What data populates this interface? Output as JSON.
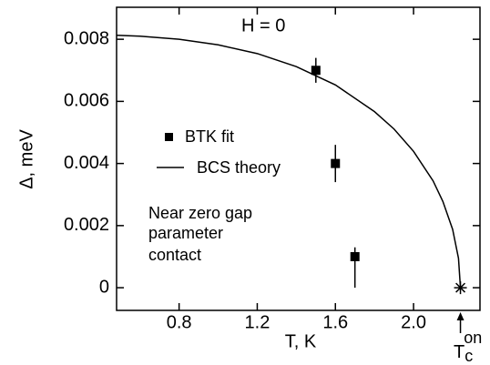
{
  "chart_data": {
    "type": "scatter",
    "xlabel": "T,  K",
    "ylabel": "Δ, meV",
    "annotation": "H = 0",
    "note": [
      "Near zero gap",
      "parameter",
      "contact"
    ],
    "tc_label": {
      "base": "T",
      "sub": "c",
      "sup": "on"
    },
    "xlim": [
      0.48,
      2.34
    ],
    "ylim": [
      -0.00073,
      0.00903
    ],
    "xticks": [
      0.8,
      1.2,
      1.6,
      {
        "value": 2,
        "label": "2.0"
      }
    ],
    "yticks": [
      0,
      0.002,
      0.004,
      0.006,
      0.008
    ],
    "series": [
      {
        "name": "BTK fit",
        "color": "#000000",
        "x": [
          1.5,
          1.6,
          1.7
        ],
        "values": [
          0.007,
          0.004,
          0.001
        ],
        "err_low": [
          0.0004,
          0.0006,
          0.001
        ],
        "err_high": [
          0.0004,
          0.0006,
          0.0003
        ]
      },
      {
        "name": "BCS theory",
        "color": "#000000",
        "x": [
          0.48,
          0.6,
          0.8,
          1.0,
          1.2,
          1.4,
          1.6,
          1.8,
          1.9,
          2.0,
          2.1,
          2.15,
          2.2,
          2.23,
          2.24
        ],
        "values": [
          0.00813,
          0.0081,
          0.008,
          0.00782,
          0.00754,
          0.00712,
          0.00653,
          0.00567,
          0.00511,
          0.00439,
          0.00344,
          0.00278,
          0.00188,
          0.00095,
          0
        ]
      }
    ],
    "tc_point": {
      "x": 2.24,
      "y": 0
    }
  }
}
